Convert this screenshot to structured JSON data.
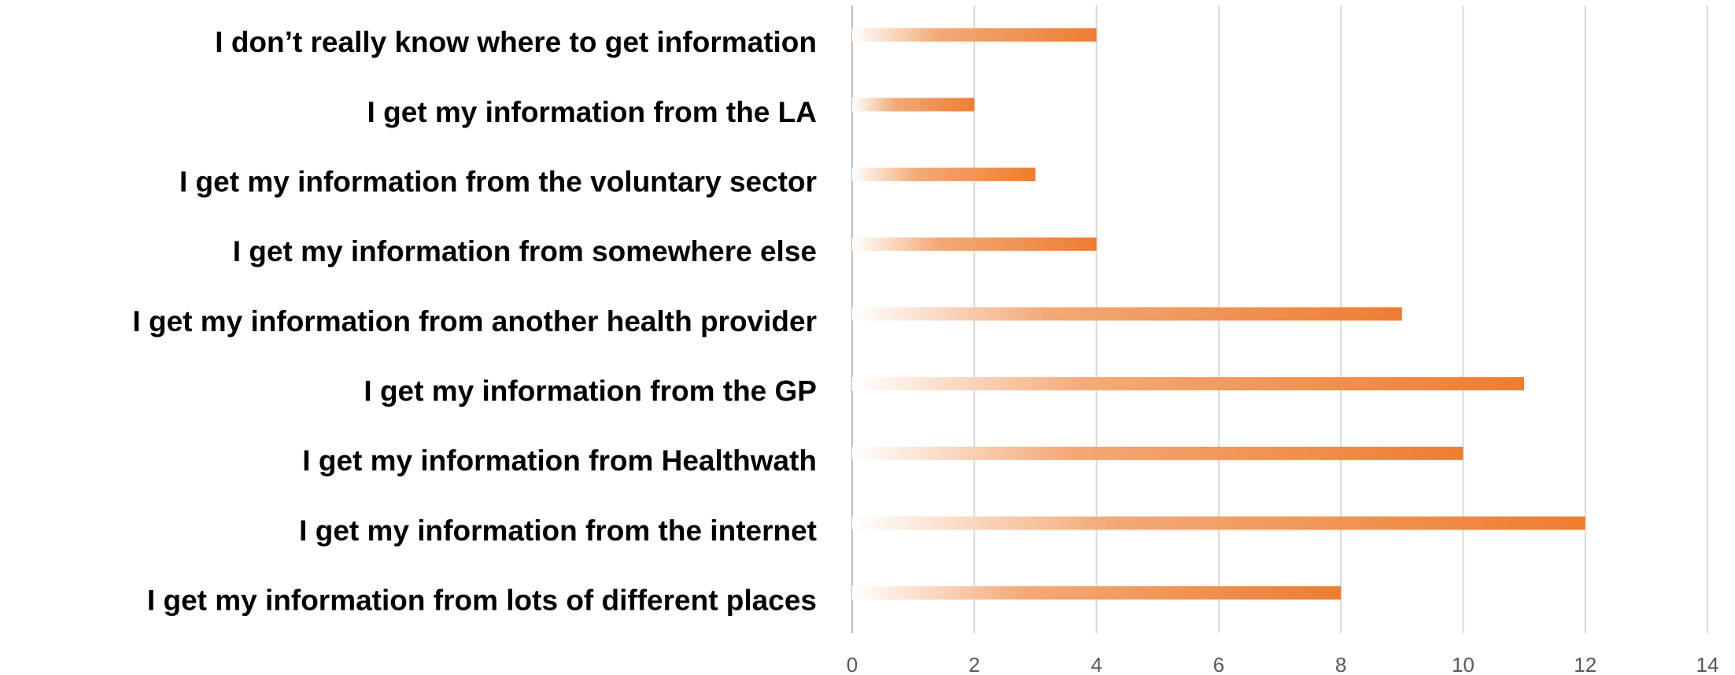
{
  "chart_data": {
    "type": "bar",
    "orientation": "horizontal",
    "categories": [
      "I don’t really know where to get information",
      "I get my information from the LA",
      "I get my information from the voluntary sector",
      "I get my information from somewhere else",
      "I get my information from another health provider",
      "I get my information from the GP",
      "I get my information from Healthwath",
      "I get my information from the internet",
      "I get my information from lots of different places"
    ],
    "values": [
      4,
      2,
      3,
      4,
      9,
      11,
      10,
      12,
      8
    ],
    "color": "#ed7d31",
    "xlim": [
      0,
      14
    ],
    "xticks": [
      0,
      2,
      4,
      6,
      8,
      10,
      12,
      14
    ],
    "grid": true
  }
}
